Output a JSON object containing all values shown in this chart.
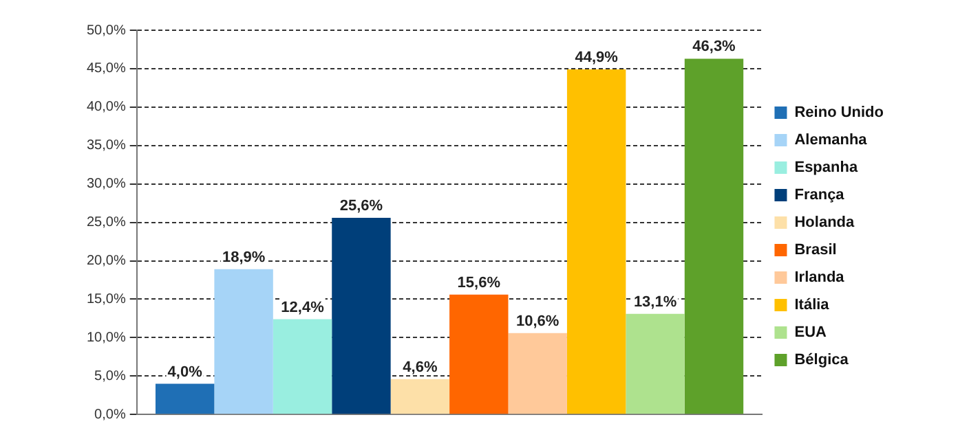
{
  "chart_data": {
    "type": "bar",
    "categories": [
      null
    ],
    "series": [
      {
        "name": "Reino Unido",
        "color": "#1f6fb5",
        "values": [
          4.0
        ],
        "value_labels": [
          "4,0%"
        ]
      },
      {
        "name": "Alemanha",
        "color": "#a6d4f7",
        "values": [
          18.9
        ],
        "value_labels": [
          "18,9%"
        ]
      },
      {
        "name": "Espanha",
        "color": "#99eee0",
        "values": [
          12.4
        ],
        "value_labels": [
          "12,4%"
        ]
      },
      {
        "name": "França",
        "color": "#003f7a",
        "values": [
          25.6
        ],
        "value_labels": [
          "25,6%"
        ]
      },
      {
        "name": "Holanda",
        "color": "#fde0a8",
        "values": [
          4.6
        ],
        "value_labels": [
          "4,6%"
        ]
      },
      {
        "name": "Brasil",
        "color": "#ff6600",
        "values": [
          15.6
        ],
        "value_labels": [
          "15,6%"
        ]
      },
      {
        "name": "Irlanda",
        "color": "#ffc99a",
        "values": [
          10.6
        ],
        "value_labels": [
          "10,6%"
        ]
      },
      {
        "name": "Itália",
        "color": "#ffc000",
        "values": [
          44.9
        ],
        "value_labels": [
          "44,9%"
        ]
      },
      {
        "name": "EUA",
        "color": "#aee28e",
        "values": [
          13.1
        ],
        "value_labels": [
          "13,1%"
        ]
      },
      {
        "name": "Bélgica",
        "color": "#5ea12a",
        "values": [
          46.3
        ],
        "value_labels": [
          "46,3%"
        ]
      }
    ],
    "ylim": [
      0,
      50
    ],
    "yticks": [
      {
        "value": 0,
        "label": "0,0%"
      },
      {
        "value": 5,
        "label": "5,0%"
      },
      {
        "value": 10,
        "label": "10,0%"
      },
      {
        "value": 15,
        "label": "15,0%"
      },
      {
        "value": 20,
        "label": "20,0%"
      },
      {
        "value": 25,
        "label": "25,0%"
      },
      {
        "value": 30,
        "label": "30,0%"
      },
      {
        "value": 35,
        "label": "35,0%"
      },
      {
        "value": 40,
        "label": "40,0%"
      },
      {
        "value": 45,
        "label": "45,0%"
      },
      {
        "value": 50,
        "label": "50,0%"
      }
    ],
    "grid": "y",
    "legend": "right"
  }
}
